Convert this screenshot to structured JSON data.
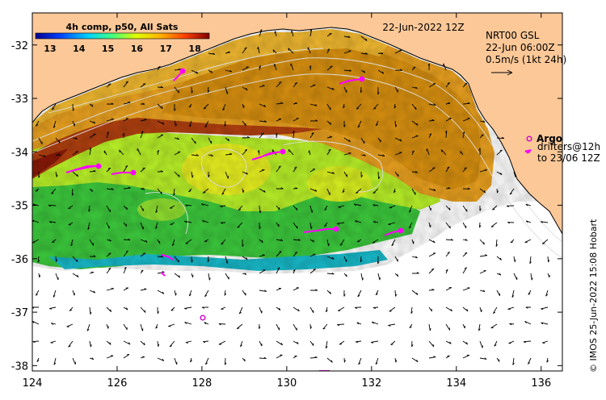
{
  "title": {
    "date": "22-Jun-2022 12Z",
    "product_line1": "NRT00 GSL",
    "product_line2": "22-Jun 06:00Z",
    "scale_label": "0.5m/s (1kt 24h)"
  },
  "colorbar": {
    "label": "4h comp, p50, All Sats",
    "ticks": [
      "13",
      "14",
      "15",
      "16",
      "17",
      "18"
    ],
    "min": 12.5,
    "max": 18.5
  },
  "legend": {
    "argo_label": "Argo",
    "drifters_line1": "drifters@12h",
    "drifters_line2": "to 23/06 12Z"
  },
  "axes": {
    "x_ticks": [
      "124",
      "126",
      "128",
      "130",
      "132",
      "134",
      "136"
    ],
    "y_ticks": [
      "-32",
      "-33",
      "-34",
      "-35",
      "-36",
      "-37",
      "-38"
    ],
    "lon_range": [
      124,
      136.5
    ],
    "lat_range": [
      -38.1,
      -31.4
    ]
  },
  "credit": "© IMOS 25-Jun-2022 15:08 Hobart",
  "colors": {
    "land": "#fcc898",
    "argo": "#d000d0",
    "drifter": "#ff00ff",
    "axis": "#000000"
  }
}
